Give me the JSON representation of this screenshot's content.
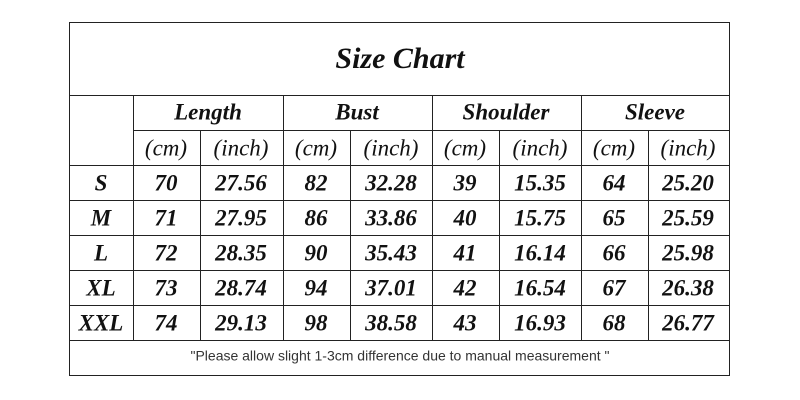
{
  "title": "Size Chart",
  "groups": [
    "Length",
    "Bust",
    "Shoulder",
    "Sleeve"
  ],
  "units": [
    "(cm)",
    "(inch)",
    "(cm)",
    "(inch)",
    "(cm)",
    "(inch)",
    "(cm)",
    "(inch)"
  ],
  "rows": [
    {
      "size": "S",
      "values": [
        "70",
        "27.56",
        "82",
        "32.28",
        "39",
        "15.35",
        "64",
        "25.20"
      ]
    },
    {
      "size": "M",
      "values": [
        "71",
        "27.95",
        "86",
        "33.86",
        "40",
        "15.75",
        "65",
        "25.59"
      ]
    },
    {
      "size": "L",
      "values": [
        "72",
        "28.35",
        "90",
        "35.43",
        "41",
        "16.14",
        "66",
        "25.98"
      ]
    },
    {
      "size": "XL",
      "values": [
        "73",
        "28.74",
        "94",
        "37.01",
        "42",
        "16.54",
        "67",
        "26.38"
      ]
    },
    {
      "size": "XXL",
      "values": [
        "74",
        "29.13",
        "98",
        "38.58",
        "43",
        "16.93",
        "68",
        "26.77"
      ]
    }
  ],
  "note": "\"Please allow slight 1-3cm difference due to manual measurement \""
}
